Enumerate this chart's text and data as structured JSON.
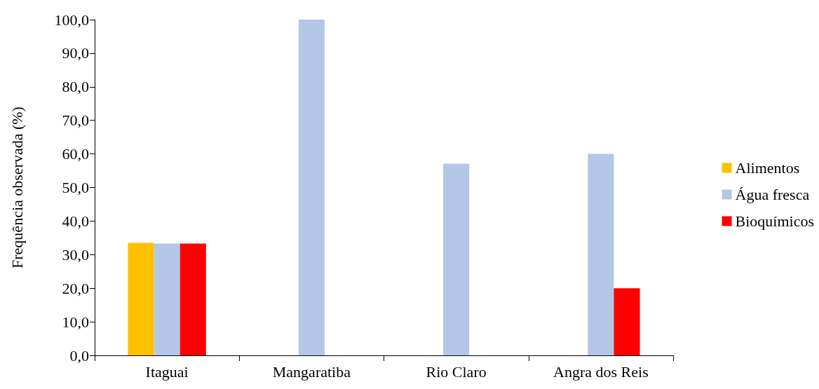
{
  "chart_data": {
    "type": "bar",
    "ylabel": "Frequência observada (%)",
    "categories": [
      "Itaguai",
      "Mangaratiba",
      "Rio Claro",
      "Angra dos Reis"
    ],
    "series": [
      {
        "name": "Alimentos",
        "color": "#ffc000",
        "values": [
          33.5,
          0,
          0,
          0
        ]
      },
      {
        "name": "Água fresca",
        "color": "#b4c7e7",
        "values": [
          33.3,
          100,
          57.1,
          60
        ]
      },
      {
        "name": "Bioquímicos",
        "color": "#ff0000",
        "values": [
          33.3,
          0,
          0,
          20
        ]
      }
    ],
    "ylim": [
      0,
      100
    ],
    "yticks": [
      {
        "value": 0,
        "label": "0,0"
      },
      {
        "value": 10,
        "label": "10,0"
      },
      {
        "value": 20,
        "label": "20,0"
      },
      {
        "value": 30,
        "label": "30,0"
      },
      {
        "value": 40,
        "label": "40,0"
      },
      {
        "value": 50,
        "label": "50,0"
      },
      {
        "value": 60,
        "label": "60,0"
      },
      {
        "value": 70,
        "label": "70,0"
      },
      {
        "value": 80,
        "label": "80,0"
      },
      {
        "value": 90,
        "label": "90,0"
      },
      {
        "value": 100,
        "label": "100,0"
      }
    ],
    "grid": false,
    "legend": "right"
  }
}
